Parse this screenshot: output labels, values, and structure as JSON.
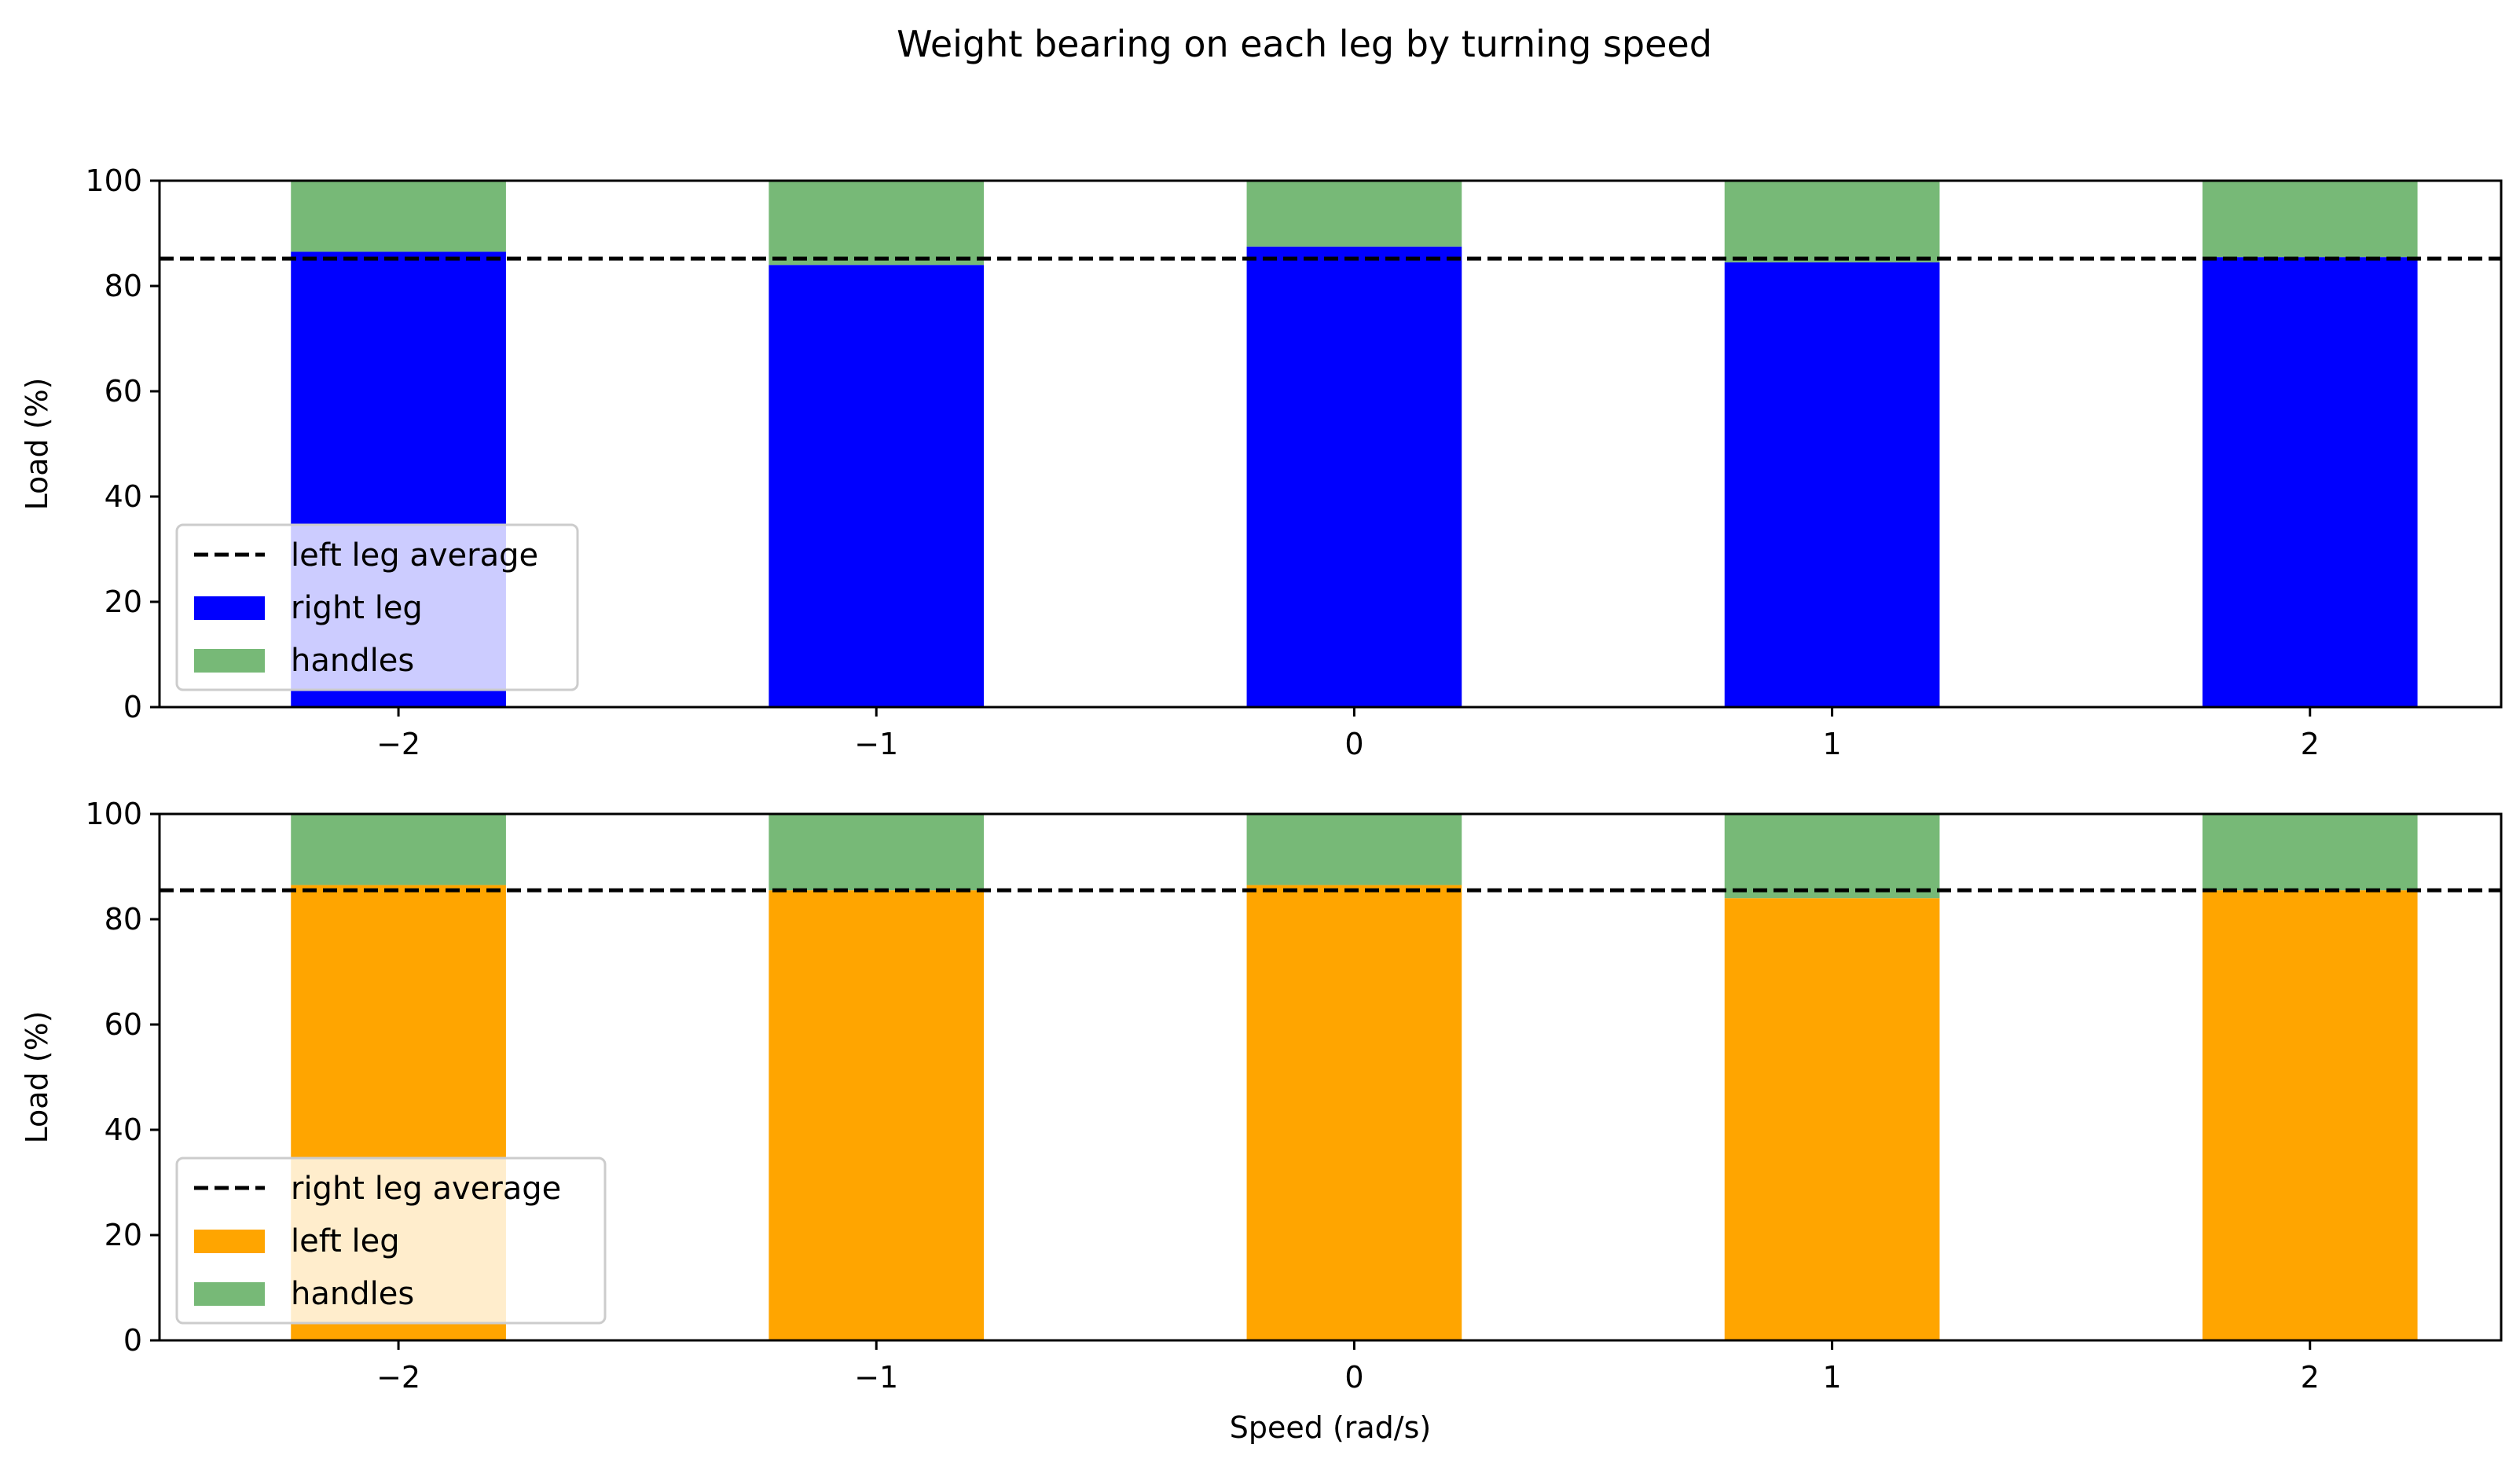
{
  "title": "Weight bearing on each leg by turning speed",
  "colors": {
    "right_leg": "#0000ff",
    "left_leg": "#ffa500",
    "handles": "#77b977",
    "average_line": "#000000"
  },
  "chart_data": [
    {
      "type": "bar",
      "stacked": true,
      "x": [
        -2,
        -1,
        0,
        1,
        2
      ],
      "xtick_labels": [
        "−2",
        "−1",
        "0",
        "1",
        "2"
      ],
      "xlim": [
        -2.5,
        2.4
      ],
      "ylim": [
        0,
        100
      ],
      "yticks": [
        0,
        20,
        40,
        60,
        80,
        100
      ],
      "ylabel": "Load (%)",
      "xlabel": "",
      "series": [
        {
          "name": "right leg",
          "color_key": "right_leg",
          "values": [
            86.5,
            84,
            87.5,
            84.5,
            85.5
          ]
        },
        {
          "name": "handles",
          "color_key": "handles",
          "values": [
            13.5,
            16,
            12.5,
            15.5,
            14.5
          ]
        }
      ],
      "reference_line": {
        "label": "left leg average",
        "value": 85.2,
        "style": "dashed"
      },
      "legend": {
        "position": "lower-left",
        "entries": [
          {
            "label": "left leg average",
            "kind": "line",
            "color_key": "average_line"
          },
          {
            "label": "right leg",
            "kind": "patch",
            "color_key": "right_leg"
          },
          {
            "label": "handles",
            "kind": "patch",
            "color_key": "handles"
          }
        ]
      }
    },
    {
      "type": "bar",
      "stacked": true,
      "x": [
        -2,
        -1,
        0,
        1,
        2
      ],
      "xtick_labels": [
        "−2",
        "−1",
        "0",
        "1",
        "2"
      ],
      "xlim": [
        -2.5,
        2.4
      ],
      "ylim": [
        0,
        100
      ],
      "yticks": [
        0,
        20,
        40,
        60,
        80,
        100
      ],
      "ylabel": "Load (%)",
      "xlabel": "Speed (rad/s)",
      "series": [
        {
          "name": "left leg",
          "color_key": "left_leg",
          "values": [
            86.5,
            85.5,
            86.5,
            84,
            85.5
          ]
        },
        {
          "name": "handles",
          "color_key": "handles",
          "values": [
            13.5,
            14.5,
            13.5,
            16,
            14.5
          ]
        }
      ],
      "reference_line": {
        "label": "right leg average",
        "value": 85.5,
        "style": "dashed"
      },
      "legend": {
        "position": "lower-left",
        "entries": [
          {
            "label": "right leg average",
            "kind": "line",
            "color_key": "average_line"
          },
          {
            "label": "left leg",
            "kind": "patch",
            "color_key": "left_leg"
          },
          {
            "label": "handles",
            "kind": "patch",
            "color_key": "handles"
          }
        ]
      }
    }
  ]
}
